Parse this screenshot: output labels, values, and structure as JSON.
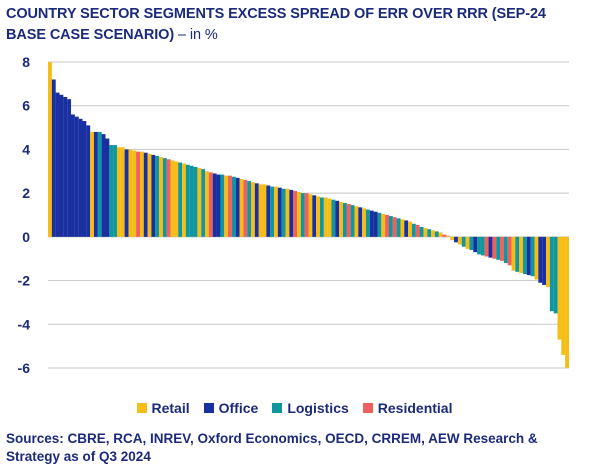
{
  "title": "COUNTRY SECTOR SEGMENTS EXCESS SPREAD OF ERR OVER RRR (SEP-24 BASE CASE SCENARIO)",
  "title_unit": " – in %",
  "source": "Sources: CBRE, RCA, INREV, Oxford Economics, OECD, CRREM, AEW Research & Strategy as of Q3 2024",
  "colors": {
    "Retail": "#f6bd16",
    "Office": "#1a2fa0",
    "Logistics": "#0f96a0",
    "Residential": "#f0605d",
    "text": "#1b2a7a",
    "grid": "#c8c8c8"
  },
  "chart_data": {
    "type": "bar",
    "title": "COUNTRY SECTOR SEGMENTS EXCESS SPREAD OF ERR OVER RRR (SEP-24 BASE CASE SCENARIO) – in %",
    "xlabel": "",
    "ylabel": "",
    "ylim": [
      -6,
      8
    ],
    "yticks": [
      8,
      6,
      4,
      2,
      0,
      -2,
      -4,
      -6
    ],
    "grid": true,
    "legend_position": "bottom",
    "series_names": [
      "Retail",
      "Office",
      "Logistics",
      "Residential"
    ],
    "bars": [
      {
        "s": "Retail",
        "v": 8.0
      },
      {
        "s": "Office",
        "v": 7.2
      },
      {
        "s": "Office",
        "v": 6.6
      },
      {
        "s": "Office",
        "v": 6.5
      },
      {
        "s": "Office",
        "v": 6.4
      },
      {
        "s": "Office",
        "v": 6.3
      },
      {
        "s": "Office",
        "v": 5.6
      },
      {
        "s": "Office",
        "v": 5.5
      },
      {
        "s": "Office",
        "v": 5.4
      },
      {
        "s": "Office",
        "v": 5.3
      },
      {
        "s": "Office",
        "v": 5.1
      },
      {
        "s": "Retail",
        "v": 4.8
      },
      {
        "s": "Office",
        "v": 4.8
      },
      {
        "s": "Logistics",
        "v": 4.8
      },
      {
        "s": "Office",
        "v": 4.7
      },
      {
        "s": "Office",
        "v": 4.5
      },
      {
        "s": "Logistics",
        "v": 4.2
      },
      {
        "s": "Logistics",
        "v": 4.2
      },
      {
        "s": "Retail",
        "v": 4.1
      },
      {
        "s": "Retail",
        "v": 4.1
      },
      {
        "s": "Office",
        "v": 4.0
      },
      {
        "s": "Retail",
        "v": 4.0
      },
      {
        "s": "Retail",
        "v": 3.95
      },
      {
        "s": "Residential",
        "v": 3.9
      },
      {
        "s": "Retail",
        "v": 3.9
      },
      {
        "s": "Office",
        "v": 3.85
      },
      {
        "s": "Retail",
        "v": 3.8
      },
      {
        "s": "Office",
        "v": 3.75
      },
      {
        "s": "Logistics",
        "v": 3.7
      },
      {
        "s": "Retail",
        "v": 3.65
      },
      {
        "s": "Logistics",
        "v": 3.6
      },
      {
        "s": "Residential",
        "v": 3.55
      },
      {
        "s": "Retail",
        "v": 3.5
      },
      {
        "s": "Retail",
        "v": 3.45
      },
      {
        "s": "Logistics",
        "v": 3.4
      },
      {
        "s": "Retail",
        "v": 3.35
      },
      {
        "s": "Logistics",
        "v": 3.3
      },
      {
        "s": "Logistics",
        "v": 3.25
      },
      {
        "s": "Logistics",
        "v": 3.2
      },
      {
        "s": "Retail",
        "v": 3.15
      },
      {
        "s": "Logistics",
        "v": 3.1
      },
      {
        "s": "Retail",
        "v": 3.0
      },
      {
        "s": "Residential",
        "v": 2.95
      },
      {
        "s": "Office",
        "v": 2.9
      },
      {
        "s": "Office",
        "v": 2.85
      },
      {
        "s": "Logistics",
        "v": 2.85
      },
      {
        "s": "Retail",
        "v": 2.8
      },
      {
        "s": "Residential",
        "v": 2.8
      },
      {
        "s": "Logistics",
        "v": 2.75
      },
      {
        "s": "Office",
        "v": 2.7
      },
      {
        "s": "Retail",
        "v": 2.65
      },
      {
        "s": "Residential",
        "v": 2.6
      },
      {
        "s": "Logistics",
        "v": 2.55
      },
      {
        "s": "Retail",
        "v": 2.5
      },
      {
        "s": "Office",
        "v": 2.45
      },
      {
        "s": "Retail",
        "v": 2.4
      },
      {
        "s": "Retail",
        "v": 2.4
      },
      {
        "s": "Office",
        "v": 2.35
      },
      {
        "s": "Logistics",
        "v": 2.3
      },
      {
        "s": "Retail",
        "v": 2.3
      },
      {
        "s": "Office",
        "v": 2.25
      },
      {
        "s": "Logistics",
        "v": 2.2
      },
      {
        "s": "Retail",
        "v": 2.2
      },
      {
        "s": "Office",
        "v": 2.15
      },
      {
        "s": "Residential",
        "v": 2.1
      },
      {
        "s": "Retail",
        "v": 2.05
      },
      {
        "s": "Logistics",
        "v": 2.0
      },
      {
        "s": "Residential",
        "v": 2.0
      },
      {
        "s": "Retail",
        "v": 1.95
      },
      {
        "s": "Office",
        "v": 1.9
      },
      {
        "s": "Retail",
        "v": 1.85
      },
      {
        "s": "Logistics",
        "v": 1.8
      },
      {
        "s": "Retail",
        "v": 1.8
      },
      {
        "s": "Retail",
        "v": 1.75
      },
      {
        "s": "Logistics",
        "v": 1.7
      },
      {
        "s": "Office",
        "v": 1.65
      },
      {
        "s": "Retail",
        "v": 1.6
      },
      {
        "s": "Logistics",
        "v": 1.55
      },
      {
        "s": "Residential",
        "v": 1.5
      },
      {
        "s": "Logistics",
        "v": 1.45
      },
      {
        "s": "Retail",
        "v": 1.4
      },
      {
        "s": "Office",
        "v": 1.35
      },
      {
        "s": "Retail",
        "v": 1.3
      },
      {
        "s": "Logistics",
        "v": 1.25
      },
      {
        "s": "Office",
        "v": 1.2
      },
      {
        "s": "Office",
        "v": 1.15
      },
      {
        "s": "Logistics",
        "v": 1.1
      },
      {
        "s": "Retail",
        "v": 1.05
      },
      {
        "s": "Residential",
        "v": 1.0
      },
      {
        "s": "Logistics",
        "v": 0.95
      },
      {
        "s": "Residential",
        "v": 0.9
      },
      {
        "s": "Logistics",
        "v": 0.85
      },
      {
        "s": "Retail",
        "v": 0.8
      },
      {
        "s": "Office",
        "v": 0.75
      },
      {
        "s": "Retail",
        "v": 0.7
      },
      {
        "s": "Logistics",
        "v": 0.6
      },
      {
        "s": "Residential",
        "v": 0.55
      },
      {
        "s": "Logistics",
        "v": 0.45
      },
      {
        "s": "Retail",
        "v": 0.4
      },
      {
        "s": "Logistics",
        "v": 0.35
      },
      {
        "s": "Retail",
        "v": 0.3
      },
      {
        "s": "Logistics",
        "v": 0.25
      },
      {
        "s": "Retail",
        "v": 0.2
      },
      {
        "s": "Residential",
        "v": 0.1
      },
      {
        "s": "Retail",
        "v": 0.05
      },
      {
        "s": "Retail",
        "v": -0.15
      },
      {
        "s": "Office",
        "v": -0.25
      },
      {
        "s": "Retail",
        "v": -0.35
      },
      {
        "s": "Logistics",
        "v": -0.45
      },
      {
        "s": "Retail",
        "v": -0.55
      },
      {
        "s": "Logistics",
        "v": -0.6
      },
      {
        "s": "Office",
        "v": -0.7
      },
      {
        "s": "Logistics",
        "v": -0.8
      },
      {
        "s": "Logistics",
        "v": -0.85
      },
      {
        "s": "Residential",
        "v": -0.9
      },
      {
        "s": "Office",
        "v": -0.95
      },
      {
        "s": "Residential",
        "v": -1.0
      },
      {
        "s": "Logistics",
        "v": -1.05
      },
      {
        "s": "Residential",
        "v": -1.1
      },
      {
        "s": "Logistics",
        "v": -1.2
      },
      {
        "s": "Residential",
        "v": -1.3
      },
      {
        "s": "Retail",
        "v": -1.55
      },
      {
        "s": "Logistics",
        "v": -1.6
      },
      {
        "s": "Retail",
        "v": -1.65
      },
      {
        "s": "Logistics",
        "v": -1.7
      },
      {
        "s": "Office",
        "v": -1.75
      },
      {
        "s": "Logistics",
        "v": -1.8
      },
      {
        "s": "Retail",
        "v": -1.95
      },
      {
        "s": "Office",
        "v": -2.1
      },
      {
        "s": "Office",
        "v": -2.2
      },
      {
        "s": "Retail",
        "v": -2.3
      },
      {
        "s": "Logistics",
        "v": -3.4
      },
      {
        "s": "Logistics",
        "v": -3.5
      },
      {
        "s": "Retail",
        "v": -4.7
      },
      {
        "s": "Retail",
        "v": -5.4
      },
      {
        "s": "Retail",
        "v": -6.0
      }
    ]
  }
}
